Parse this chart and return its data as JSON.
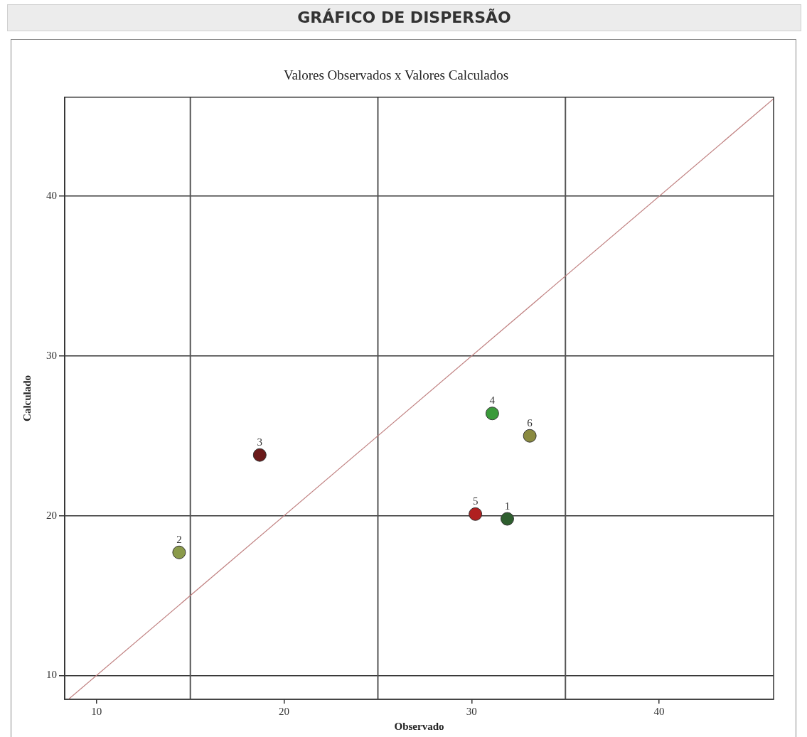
{
  "chart_data": {
    "type": "scatter",
    "title": "GRÁFICO DE DISPERSÃO",
    "subtitle": "Valores Observados x Valores Calculados",
    "xlabel": "Observado",
    "ylabel": "Calculado",
    "x": [
      31.9,
      14.4,
      18.7,
      31.1,
      30.2,
      33.1
    ],
    "values": [
      19.8,
      17.7,
      23.8,
      26.4,
      20.1,
      25.0
    ],
    "colors": [
      "#2e5e2e",
      "#8a9a4a",
      "#6b1a1a",
      "#3a9a3a",
      "#b02020",
      "#8a8a40"
    ],
    "series": [
      {
        "type": "line",
        "x": [
          8.5,
          46.1
        ],
        "values": [
          8.5,
          46.1
        ],
        "color": "#c08080",
        "marker": "none"
      }
    ],
    "xlim": [
      8.3,
      46.1
    ],
    "ylim": [
      8.5,
      46.2
    ],
    "xticks": [
      10,
      20,
      30,
      40
    ],
    "yticks": [
      10,
      20,
      30,
      40
    ],
    "grid": "y",
    "marker": "circle",
    "legend": false,
    "ref_lines": [
      {
        "axis": "x",
        "value": 15,
        "color": "#555555"
      },
      {
        "axis": "x",
        "value": 25,
        "color": "#555555"
      },
      {
        "axis": "x",
        "value": 35,
        "color": "#555555"
      }
    ],
    "annotations": [
      {
        "text": "1",
        "x": 31.9,
        "y": 19.8
      },
      {
        "text": "2",
        "x": 14.4,
        "y": 17.7
      },
      {
        "text": "3",
        "x": 18.7,
        "y": 23.8
      },
      {
        "text": "4",
        "x": 31.1,
        "y": 26.4
      },
      {
        "text": "5",
        "x": 30.2,
        "y": 20.1
      },
      {
        "text": "6",
        "x": 33.1,
        "y": 25.0
      }
    ]
  }
}
